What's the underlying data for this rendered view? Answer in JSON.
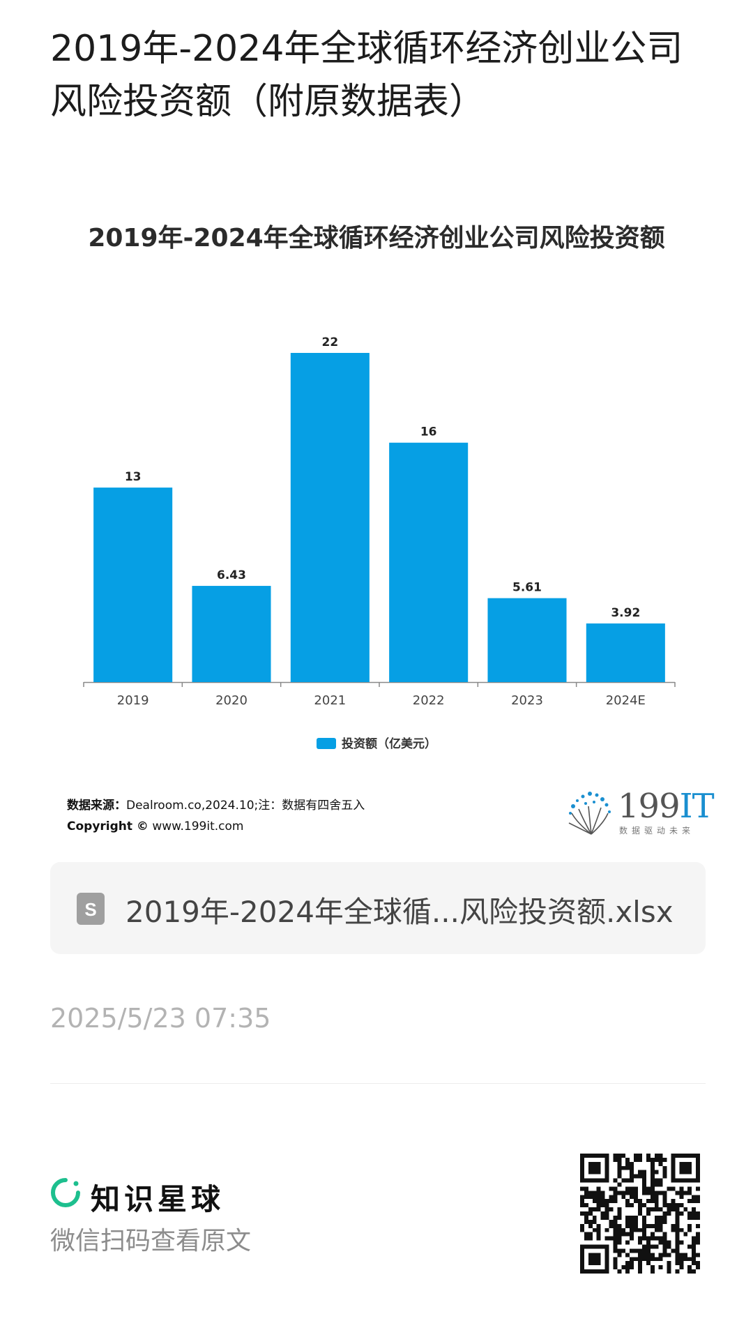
{
  "page": {
    "title": "2019年-2024年全球循环经济创业公司风险投资额（附原数据表）"
  },
  "chart_data": {
    "type": "bar",
    "title": "2019年-2024年全球循环经济创业公司风险投资额",
    "categories": [
      "2019",
      "2020",
      "2021",
      "2022",
      "2023",
      "2024E"
    ],
    "series": [
      {
        "name": "投资额（亿美元）",
        "values": [
          13,
          6.43,
          22,
          16,
          5.61,
          3.92
        ]
      }
    ],
    "data_labels": [
      "13",
      "6.43",
      "22",
      "16",
      "5.61",
      "3.92"
    ],
    "ylim": [
      0,
      22
    ],
    "grid": false,
    "legend_position": "bottom",
    "bar_color": "#069fe4"
  },
  "source": {
    "label": "数据来源：",
    "text": "Dealroom.co,2024.10;注：数据有四舍五入",
    "copyright_label": "Copyright ©",
    "copyright_text": "www.199it.com"
  },
  "brand": {
    "number": "199",
    "suffix": "IT",
    "tagline": "数据驱动未来"
  },
  "file": {
    "icon": "spreadsheet-icon",
    "icon_letter": "S",
    "name": "2019年-2024年全球循...风险投资额.xlsx"
  },
  "timestamp": "2025/5/23 07:35",
  "footer": {
    "app_name": "知识星球",
    "scan_text": "微信扫码查看原文",
    "accent_color": "#1dbf8e"
  }
}
